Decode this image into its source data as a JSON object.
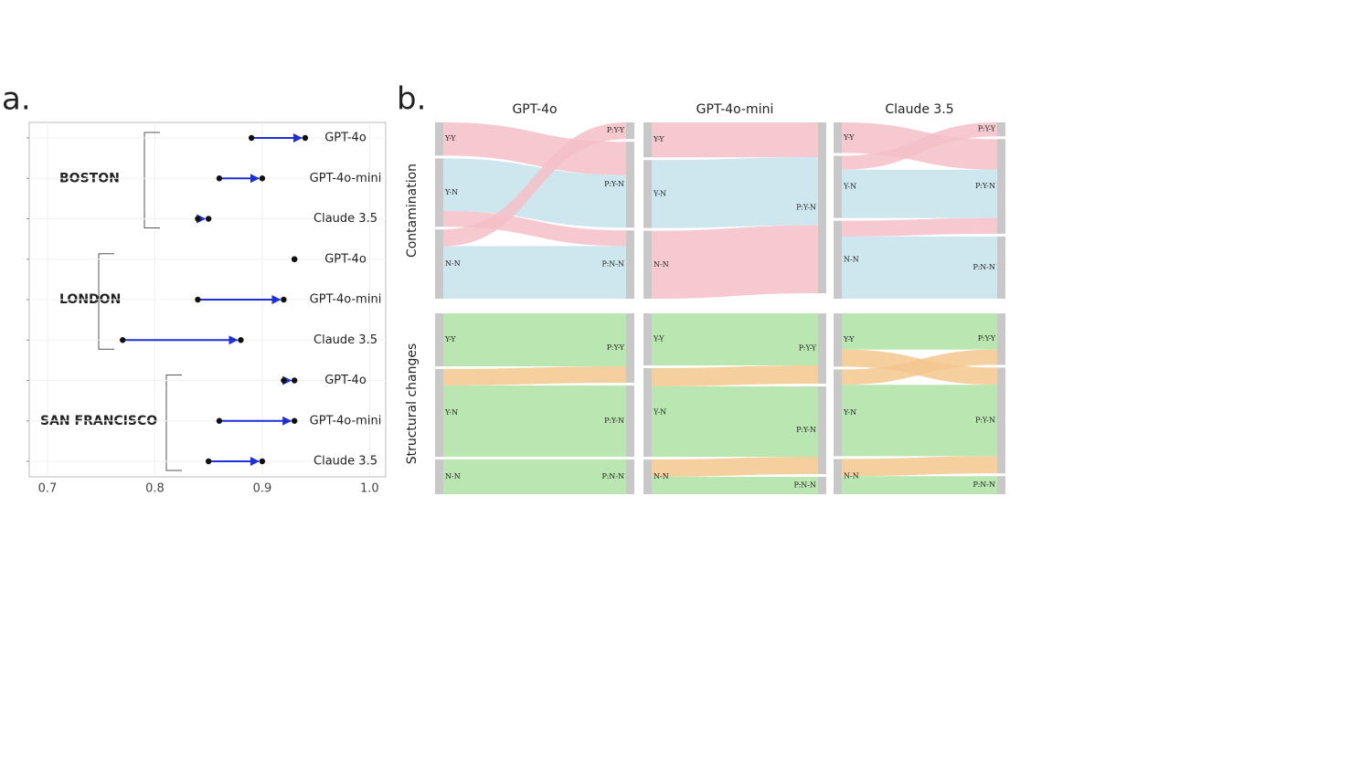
{
  "panel_labels": [
    "a.",
    "b."
  ],
  "chart_data": [
    {
      "type": "dumbbell",
      "color": "#1f2fd6",
      "point_color": "#111111",
      "grid": true,
      "xlim": [
        0.683,
        1.015
      ],
      "xticks": [
        0.7,
        0.8,
        0.9,
        {
          "value": 1,
          "label": "1.0"
        }
      ],
      "groups": [
        {
          "label": "BOSTON",
          "categories": [
            "GPT-4o",
            "GPT-4o-mini",
            "Claude 3.5"
          ],
          "start": [
            0.89,
            0.86,
            0.84
          ],
          "end": [
            0.94,
            0.9,
            0.85
          ]
        },
        {
          "label": "LONDON",
          "categories": [
            "GPT-4o",
            "GPT-4o-mini",
            "Claude 3.5"
          ],
          "start": [
            0.93,
            0.84,
            0.77
          ],
          "end": [
            0.93,
            0.92,
            0.88
          ]
        },
        {
          "label": "SAN FRANCISCO",
          "categories": [
            "GPT-4o",
            "GPT-4o-mini",
            "Claude 3.5"
          ],
          "start": [
            0.92,
            0.86,
            0.85
          ],
          "end": [
            0.93,
            0.93,
            0.9
          ]
        }
      ]
    },
    {
      "type": "sankey",
      "node_color": "#c8c8c8",
      "columns": [
        "GPT-4o",
        "GPT-4o-mini",
        "Claude 3.5"
      ],
      "rows": [
        "Contamination",
        "Structural changes"
      ],
      "panels": [
        [
          {
            "left": [
              "Y-Y",
              "Y-N",
              "N-N"
            ],
            "right": [
              "P:Y-Y",
              "P:Y-N",
              "P:N-N"
            ],
            "flows": [
              {
                "source": "Y-Y",
                "target": "P:Y-N",
                "value": 36,
                "color": "#f4bfc8"
              },
              {
                "source": "Y-N",
                "target": "P:Y-N",
                "value": 57,
                "color": "#c6e2ea"
              },
              {
                "source": "Y-N",
                "target": "P:N-N",
                "value": 17,
                "color": "#f4bfc8"
              },
              {
                "source": "N-N",
                "target": "P:Y-Y",
                "value": 18,
                "color": "#f4bfc8"
              },
              {
                "source": "N-N",
                "target": "P:N-N",
                "value": 57,
                "color": "#c6e2ea"
              }
            ]
          },
          {
            "left": [
              "Y-Y",
              "Y-N",
              "N-N"
            ],
            "right": [
              "P:Y-N"
            ],
            "flows": [
              {
                "source": "Y-Y",
                "target": "P:Y-N",
                "value": 38,
                "color": "#f4bfc8"
              },
              {
                "source": "Y-N",
                "target": "P:Y-N",
                "value": 74,
                "color": "#c6e2ea"
              },
              {
                "source": "N-N",
                "target": "P:Y-N",
                "value": 74,
                "color": "#f4bfc8"
              }
            ]
          },
          {
            "left": [
              "Y-Y",
              "Y-N",
              "N-N"
            ],
            "right": [
              "P:Y-Y",
              "P:Y-N",
              "P:N-N"
            ],
            "flows": [
              {
                "source": "Y-Y",
                "target": "P:Y-N",
                "value": 33,
                "color": "#f4bfc8"
              },
              {
                "source": "Y-N",
                "target": "P:Y-Y",
                "value": 15,
                "color": "#f4bfc8"
              },
              {
                "source": "Y-N",
                "target": "P:Y-N",
                "value": 52,
                "color": "#c6e2ea"
              },
              {
                "source": "N-N",
                "target": "P:Y-N",
                "value": 17,
                "color": "#f4bfc8"
              },
              {
                "source": "N-N",
                "target": "P:N-N",
                "value": 67,
                "color": "#c6e2ea"
              }
            ]
          }
        ],
        [
          {
            "left": [
              "Y-Y",
              "Y-N",
              "N-N"
            ],
            "right": [
              "P:Y-Y",
              "P:Y-N",
              "P:N-N"
            ],
            "flows": [
              {
                "source": "Y-Y",
                "target": "P:Y-Y",
                "value": 58,
                "color": "#aee2a3"
              },
              {
                "source": "Y-N",
                "target": "P:Y-Y",
                "value": 18,
                "color": "#f4c78e"
              },
              {
                "source": "Y-N",
                "target": "P:Y-N",
                "value": 78,
                "color": "#aee2a3"
              },
              {
                "source": "N-N",
                "target": "P:N-N",
                "value": 38,
                "color": "#aee2a3"
              }
            ]
          },
          {
            "left": [
              "Y-Y",
              "Y-N",
              "N-N"
            ],
            "right": [
              "P:Y-Y",
              "P:Y-N",
              "P:N-N"
            ],
            "flows": [
              {
                "source": "Y-Y",
                "target": "P:Y-Y",
                "value": 57,
                "color": "#aee2a3"
              },
              {
                "source": "Y-N",
                "target": "P:Y-Y",
                "value": 20,
                "color": "#f4c78e"
              },
              {
                "source": "Y-N",
                "target": "P:Y-N",
                "value": 77,
                "color": "#aee2a3"
              },
              {
                "source": "N-N",
                "target": "P:Y-N",
                "value": 19,
                "color": "#f4c78e"
              },
              {
                "source": "N-N",
                "target": "P:N-N",
                "value": 19,
                "color": "#aee2a3"
              }
            ]
          },
          {
            "left": [
              "Y-Y",
              "Y-N",
              "N-N"
            ],
            "right": [
              "P:Y-Y",
              "P:Y-N",
              "P:N-N"
            ],
            "flows": [
              {
                "source": "Y-Y",
                "target": "P:Y-Y",
                "value": 40,
                "color": "#aee2a3"
              },
              {
                "source": "Y-Y",
                "target": "P:Y-N",
                "value": 19,
                "color": "#f4c78e"
              },
              {
                "source": "Y-N",
                "target": "P:Y-Y",
                "value": 17,
                "color": "#f4c78e"
              },
              {
                "source": "Y-N",
                "target": "P:Y-N",
                "value": 79,
                "color": "#aee2a3"
              },
              {
                "source": "N-N",
                "target": "P:Y-N",
                "value": 19,
                "color": "#f4c78e"
              },
              {
                "source": "N-N",
                "target": "P:N-N",
                "value": 20,
                "color": "#aee2a3"
              }
            ]
          }
        ]
      ]
    }
  ]
}
